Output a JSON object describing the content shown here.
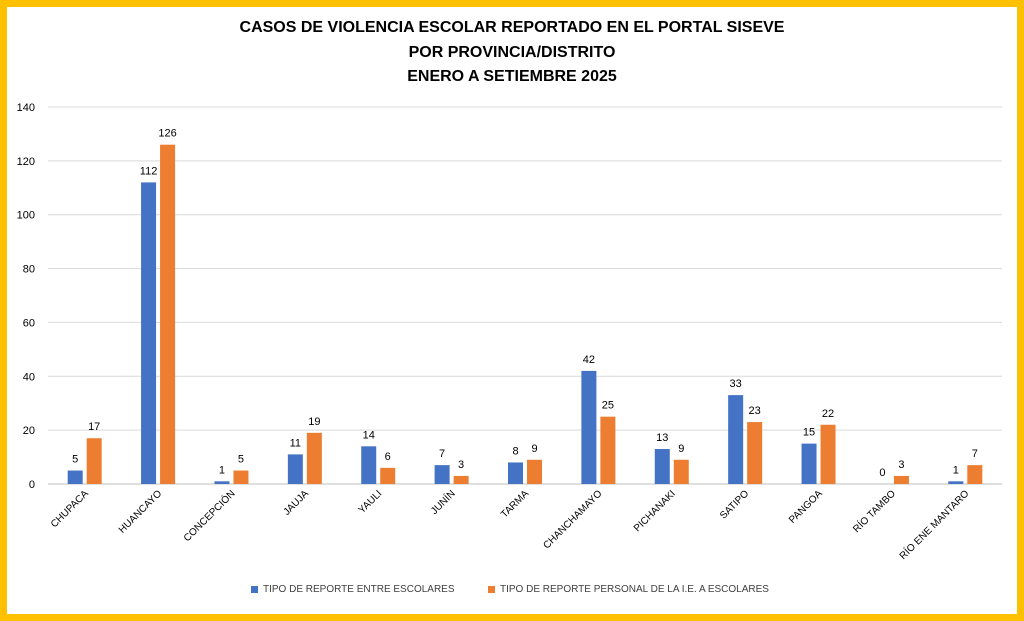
{
  "chart_data": {
    "type": "bar",
    "title": [
      "CASOS DE VIOLENCIA ESCOLAR REPORTADO EN EL PORTAL SISEVE",
      "POR PROVINCIA/DISTRITO",
      "ENERO A SETIEMBRE 2025"
    ],
    "categories": [
      "CHUPACA",
      "HUANCAYO",
      "CONCEPCIÓN",
      "JAUJA",
      "YAULI",
      "JUNÍN",
      "TARMA",
      "CHANCHAMAYO",
      "PICHANAKI",
      "SATIPO",
      "PANGOA",
      "RÍO TAMBO",
      "RÍO ENE MANTARO"
    ],
    "series": [
      {
        "name": "TIPO DE REPORTE ENTRE ESCOLARES",
        "color": "#4472C4",
        "values": [
          5,
          112,
          1,
          11,
          14,
          7,
          8,
          42,
          13,
          33,
          15,
          0,
          1
        ]
      },
      {
        "name": "TIPO DE REPORTE PERSONAL DE LA I.E. A ESCOLARES",
        "color": "#ED7D31",
        "values": [
          17,
          126,
          5,
          19,
          6,
          3,
          9,
          25,
          9,
          23,
          22,
          3,
          7
        ]
      }
    ],
    "ylim": [
      0,
      140
    ],
    "yticks": [
      0,
      20,
      40,
      60,
      80,
      100,
      120,
      140
    ],
    "grid": true,
    "legend": "bottom",
    "xlabel": "",
    "ylabel": ""
  },
  "colors": {
    "border": "#FFC000",
    "grid": "#D9D9D9",
    "axis": "#BFBFBF",
    "text": "#404040"
  }
}
